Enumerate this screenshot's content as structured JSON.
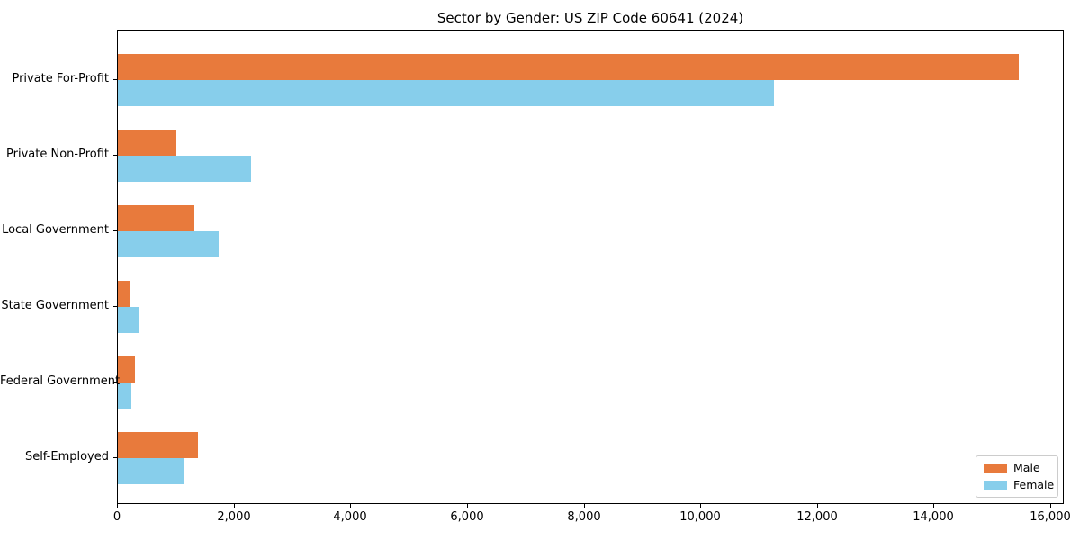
{
  "title": "Sector by Gender: US ZIP Code 60641 (2024)",
  "colors": {
    "male": "#e87a3c",
    "female": "#87ceeb",
    "axis": "#000000",
    "text": "#000000",
    "legend_border": "#cccccc",
    "background": "#ffffff"
  },
  "legend": {
    "position": "lower right",
    "items": [
      "Male",
      "Female"
    ]
  },
  "chart_data": {
    "type": "bar",
    "orientation": "horizontal",
    "title": "Sector by Gender: US ZIP Code 60641 (2024)",
    "categories": [
      "Private For-Profit",
      "Private Non-Profit",
      "Local Government",
      "State Government",
      "Federal Government",
      "Self-Employed"
    ],
    "series": [
      {
        "name": "Male",
        "color": "#e87a3c",
        "values": [
          15450,
          1000,
          1310,
          220,
          290,
          1380
        ]
      },
      {
        "name": "Female",
        "color": "#87ceeb",
        "values": [
          11240,
          2290,
          1730,
          360,
          230,
          1130
        ]
      }
    ],
    "xlabel": "",
    "ylabel": "",
    "xlim": [
      0,
      16230
    ],
    "xticks": {
      "values": [
        0,
        2000,
        4000,
        6000,
        8000,
        10000,
        12000,
        14000,
        16000
      ],
      "labels": [
        "0",
        "2,000",
        "4,000",
        "6,000",
        "8,000",
        "10,000",
        "12,000",
        "14,000",
        "16,000"
      ]
    },
    "grid": false,
    "legend_position": "lower right"
  }
}
